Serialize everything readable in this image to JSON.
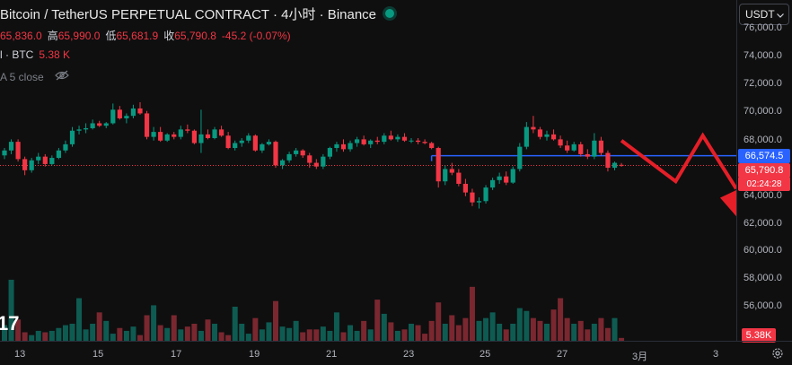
{
  "header": {
    "title": "Bitcoin / TetherUS PERPETUAL CONTRACT · 4小时 · Binance",
    "ohlc": [
      {
        "label": "",
        "value": "65,836.0"
      },
      {
        "label": "高",
        "value": "65,990.0"
      },
      {
        "label": "低",
        "value": "65,681.9"
      },
      {
        "label": "收",
        "value": "65,790.8"
      },
      {
        "label": "",
        "value": "-45.2 (-0.07%)"
      }
    ],
    "volume_label": "l · BTC",
    "volume_value": "5.38 K",
    "ma_label": "A 5 close",
    "watermark": "17"
  },
  "currency_button": {
    "label": "USDT"
  },
  "price_axis": {
    "labels": [
      "76,000.0",
      "74,000.0",
      "72,000.0",
      "70,000.0",
      "68,000.0",
      "66,000.0",
      "64,000.0",
      "62,000.0",
      "60,000.0",
      "58,000.0",
      "56,000.0"
    ],
    "blue_line_tag": "66,574.5",
    "last_price_tag": "65,790.8",
    "countdown_tag": "02:24:28",
    "volume_tag": "5.38K"
  },
  "time_axis": {
    "labels": [
      "13",
      "15",
      "17",
      "19",
      "21",
      "23",
      "25",
      "27",
      "3月",
      "3"
    ]
  },
  "colors": {
    "up": "#089981",
    "down": "#f23645",
    "line": "#2962ff",
    "background": "#0f0f0f"
  },
  "chart_data": {
    "type": "candlestick",
    "timeframe": "4h",
    "ylim": [
      54500,
      77000
    ],
    "blue_horizontal_line": 66574.5,
    "last_price": 65790.8,
    "candles": [
      [
        66600,
        67200,
        66300,
        67000
      ],
      [
        67000,
        67900,
        66700,
        67700
      ],
      [
        67700,
        67900,
        66100,
        66300
      ],
      [
        66300,
        66500,
        65000,
        65400
      ],
      [
        65400,
        66400,
        65200,
        66200
      ],
      [
        66200,
        66800,
        65900,
        66500
      ],
      [
        66500,
        66700,
        65700,
        65900
      ],
      [
        65900,
        66600,
        65800,
        66400
      ],
      [
        66400,
        67200,
        66300,
        67000
      ],
      [
        67000,
        67800,
        66800,
        67500
      ],
      [
        67500,
        68900,
        67300,
        68600
      ],
      [
        68600,
        69000,
        68300,
        68700
      ],
      [
        68700,
        69200,
        68400,
        68800
      ],
      [
        68800,
        69500,
        68700,
        69200
      ],
      [
        69200,
        69400,
        68900,
        69000
      ],
      [
        69000,
        69300,
        68800,
        69200
      ],
      [
        69200,
        70800,
        69100,
        70300
      ],
      [
        70300,
        70600,
        69500,
        69600
      ],
      [
        69600,
        70000,
        69200,
        69800
      ],
      [
        69800,
        70700,
        69600,
        70400
      ],
      [
        70400,
        70900,
        69900,
        70000
      ],
      [
        70000,
        70200,
        67900,
        68100
      ],
      [
        68100,
        68900,
        67800,
        68500
      ],
      [
        68500,
        68900,
        67700,
        67800
      ],
      [
        67800,
        68400,
        67700,
        68300
      ],
      [
        68300,
        68500,
        67900,
        68100
      ],
      [
        68100,
        69000,
        67900,
        68700
      ],
      [
        68700,
        69100,
        68400,
        68600
      ],
      [
        68600,
        68700,
        67500,
        67600
      ],
      [
        67600,
        70300,
        66800,
        68300
      ],
      [
        68300,
        68700,
        67900,
        68000
      ],
      [
        68000,
        68900,
        67900,
        68700
      ],
      [
        68700,
        69000,
        68100,
        68200
      ],
      [
        68200,
        68500,
        67100,
        67200
      ],
      [
        67200,
        67800,
        67000,
        67600
      ],
      [
        67600,
        68000,
        67300,
        67800
      ],
      [
        67800,
        68400,
        67600,
        68200
      ],
      [
        68200,
        68300,
        66900,
        67000
      ],
      [
        67000,
        67600,
        66800,
        67500
      ],
      [
        67500,
        67900,
        67400,
        67700
      ],
      [
        67700,
        67800,
        65600,
        65800
      ],
      [
        65800,
        66300,
        65500,
        66200
      ],
      [
        66200,
        66900,
        66000,
        66700
      ],
      [
        66700,
        67200,
        66500,
        67000
      ],
      [
        67000,
        67100,
        66400,
        66600
      ],
      [
        66600,
        66800,
        65600,
        66000
      ],
      [
        66000,
        66300,
        65500,
        65700
      ],
      [
        65700,
        66700,
        65500,
        66500
      ],
      [
        66500,
        67300,
        66300,
        67200
      ],
      [
        67200,
        67700,
        66900,
        67500
      ],
      [
        67500,
        67900,
        66900,
        67100
      ],
      [
        67100,
        67800,
        66900,
        67600
      ],
      [
        67600,
        68100,
        67300,
        67900
      ],
      [
        67900,
        68200,
        67400,
        67500
      ],
      [
        67500,
        67900,
        67200,
        67800
      ],
      [
        67800,
        68100,
        67500,
        67700
      ],
      [
        67700,
        68400,
        67500,
        68200
      ],
      [
        68200,
        68600,
        67800,
        67900
      ],
      [
        67900,
        68300,
        67700,
        68100
      ],
      [
        68100,
        68400,
        67700,
        67800
      ],
      [
        67800,
        68000,
        67600,
        67800
      ],
      [
        67800,
        68000,
        67500,
        67700
      ],
      [
        67700,
        67900,
        67500,
        67600
      ],
      [
        67600,
        67700,
        67100,
        67200
      ],
      [
        67200,
        67300,
        64000,
        64500
      ],
      [
        64500,
        65800,
        64200,
        65500
      ],
      [
        65500,
        66000,
        65000,
        65200
      ],
      [
        65200,
        65500,
        64100,
        64300
      ],
      [
        64300,
        64700,
        63300,
        63600
      ],
      [
        63600,
        63900,
        62500,
        62800
      ],
      [
        62800,
        63200,
        62300,
        62900
      ],
      [
        62900,
        64200,
        62700,
        64000
      ],
      [
        64000,
        64800,
        63800,
        64600
      ],
      [
        64600,
        65200,
        64300,
        64900
      ],
      [
        64900,
        65300,
        64200,
        64400
      ],
      [
        64400,
        65700,
        64300,
        65500
      ],
      [
        65500,
        67600,
        65300,
        67300
      ],
      [
        67300,
        69300,
        67100,
        68900
      ],
      [
        68900,
        69800,
        68400,
        68700
      ],
      [
        68700,
        68900,
        67900,
        68100
      ],
      [
        68100,
        68600,
        67800,
        68300
      ],
      [
        68300,
        68700,
        67800,
        67900
      ],
      [
        67900,
        68200,
        67200,
        67400
      ],
      [
        67400,
        67800,
        66800,
        67000
      ],
      [
        67000,
        67700,
        66900,
        67500
      ],
      [
        67500,
        67700,
        66500,
        66700
      ],
      [
        66700,
        67100,
        66300,
        66500
      ],
      [
        66500,
        68400,
        66300,
        67800
      ],
      [
        67800,
        68100,
        66600,
        66800
      ],
      [
        66800,
        67000,
        65300,
        65600
      ],
      [
        65600,
        66100,
        65400,
        66000
      ],
      [
        65836,
        65990,
        65681.9,
        65790.8
      ]
    ],
    "volume_ylim": [
      0,
      600
    ],
    "volumes": [
      110,
      430,
      150,
      60,
      40,
      70,
      60,
      70,
      90,
      110,
      120,
      300,
      80,
      120,
      200,
      140,
      50,
      90,
      70,
      100,
      40,
      180,
      250,
      110,
      90,
      180,
      80,
      100,
      120,
      70,
      150,
      120,
      60,
      40,
      240,
      120,
      50,
      160,
      80,
      130,
      280,
      100,
      90,
      140,
      60,
      80,
      80,
      100,
      70,
      200,
      60,
      110,
      70,
      140,
      80,
      290,
      190,
      130,
      70,
      80,
      120,
      110,
      50,
      140,
      270,
      120,
      180,
      110,
      160,
      380,
      140,
      160,
      200,
      120,
      80,
      120,
      230,
      210,
      160,
      140,
      120,
      220,
      300,
      160,
      120,
      140,
      80,
      120,
      160,
      90,
      160,
      20
    ],
    "trend_arrows": [
      {
        "from": [
          91,
          67800
        ],
        "to": [
          99,
          64500
        ],
        "then_up_to": [
          103,
          68200
        ],
        "then_down_to": [
          109,
          61000
        ]
      }
    ]
  }
}
